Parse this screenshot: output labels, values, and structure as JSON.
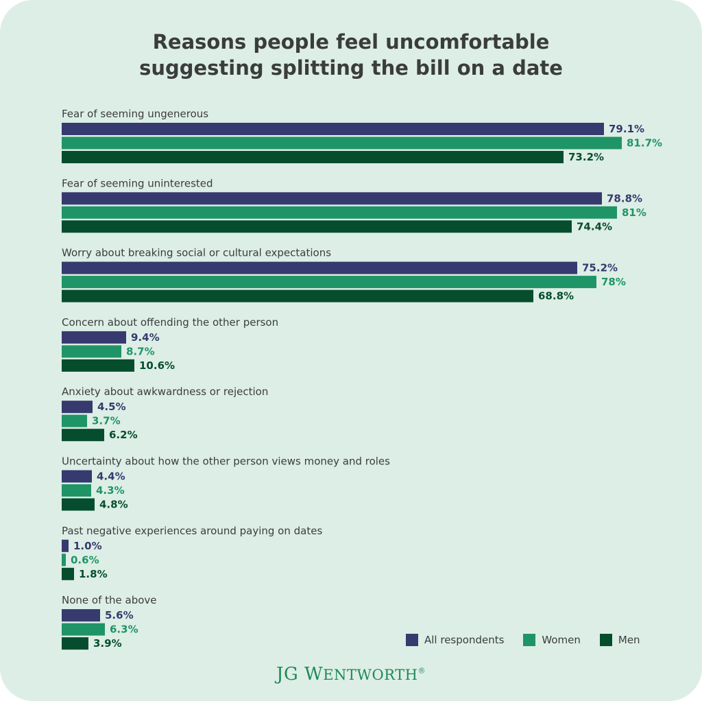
{
  "chart_data": {
    "type": "bar",
    "orientation": "horizontal",
    "title_line1": "Reasons people feel uncomfortable",
    "title_line2": "suggesting splitting the bill on a date",
    "categories": [
      "Fear of seeming ungenerous",
      "Fear of seeming uninterested",
      "Worry about breaking social or cultural expectations",
      "Concern about offending the other person",
      "Anxiety about awkwardness or rejection",
      "Uncertainty about how the other person views money and roles",
      "Past negative experiences around paying on dates",
      "None of the above"
    ],
    "series": [
      {
        "name": "All respondents",
        "color": "#363a6e",
        "values": [
          79.1,
          78.8,
          75.2,
          9.4,
          4.5,
          4.4,
          1.0,
          5.6
        ],
        "labels": [
          "79.1%",
          "78.8%",
          "75.2%",
          "9.4%",
          "4.5%",
          "4.4%",
          "1.0%",
          "5.6%"
        ]
      },
      {
        "name": "Women",
        "color": "#1f9467",
        "values": [
          81.7,
          81,
          78,
          8.7,
          3.7,
          4.3,
          0.6,
          6.3
        ],
        "labels": [
          "81.7%",
          "81%",
          "78%",
          "8.7%",
          "3.7%",
          "4.3%",
          "0.6%",
          "6.3%"
        ]
      },
      {
        "name": "Men",
        "color": "#054d2d",
        "values": [
          73.2,
          74.4,
          68.8,
          10.6,
          6.2,
          4.8,
          1.8,
          3.9
        ],
        "labels": [
          "73.2%",
          "74.4%",
          "68.8%",
          "10.6%",
          "6.2%",
          "4.8%",
          "1.8%",
          "3.9%"
        ]
      }
    ],
    "legend": [
      "All respondents",
      "Women",
      "Men"
    ],
    "legend_position": "bottom-right"
  },
  "brand": {
    "first": "JG W",
    "rest": "ENTWORTH",
    "mark": "®"
  }
}
